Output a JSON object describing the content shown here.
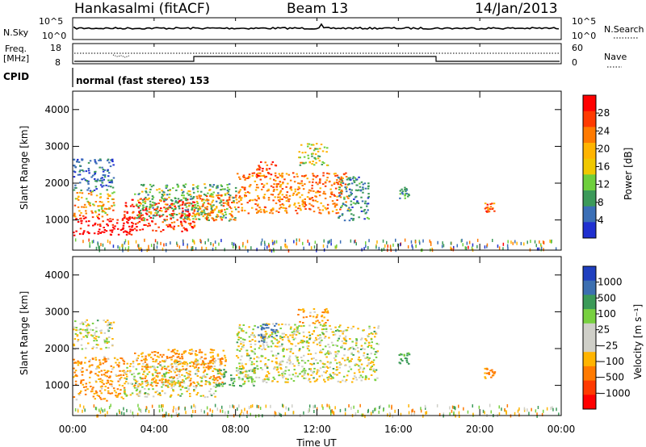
{
  "header": {
    "radar": "Hankasalmi (fitACF)",
    "beam": "Beam 13",
    "date": "14/Jan/2013"
  },
  "noise_panel": {
    "left_label": "N.Sky",
    "left_ticks": [
      "10^5",
      "10^0"
    ],
    "right_label": "N.Search",
    "right_ticks": [
      "10^5",
      "10^0"
    ]
  },
  "freq_panel": {
    "left_label_1": "Freq.",
    "left_label_2": "[MHz]",
    "left_ticks": [
      "18",
      "8"
    ],
    "right_label": "Nave",
    "right_ticks": [
      "60",
      "0"
    ]
  },
  "cpid": {
    "label": "CPID",
    "value": "normal (fast stereo) 153"
  },
  "axes": {
    "ylabel": "Slant Range [km]",
    "yticks": [
      "4000",
      "3000",
      "2000",
      "1000"
    ],
    "xticks": [
      "00:00",
      "04:00",
      "08:00",
      "12:00",
      "16:00",
      "20:00",
      "00:00"
    ],
    "xlabel": "Time UT"
  },
  "power_colorbar": {
    "label": "Power [dB]",
    "ticks": [
      "28",
      "24",
      "20",
      "16",
      "12",
      "8",
      "4"
    ],
    "colors": [
      "#ff0000",
      "#ff3a00",
      "#ff7a00",
      "#ffb400",
      "#f0c800",
      "#6ecf3c",
      "#3c9a5a",
      "#3b6fb6",
      "#2030d0"
    ]
  },
  "velocity_colorbar": {
    "label": "Velocity [m s⁻¹]",
    "ticks": [
      "1000",
      "500",
      "100",
      "25",
      "−25",
      "−100",
      "−500",
      "−1000"
    ],
    "colors": [
      "#1f3fbf",
      "#3c6fb0",
      "#3b9a58",
      "#78d040",
      "#cfcfc8",
      "#cfcfc8",
      "#ffb400",
      "#ff7a00",
      "#ff3a00",
      "#ff0000"
    ]
  },
  "chart_data": [
    {
      "type": "heatmap",
      "title": "Power",
      "xlabel": "Time UT",
      "ylabel": "Slant Range [km]",
      "xlim": [
        "00:00",
        "24:00"
      ],
      "ylim": [
        180,
        4500
      ],
      "colorbar": {
        "label": "Power [dB]",
        "range": [
          3,
          30
        ]
      },
      "regions": [
        {
          "t": [
            0.0,
            3.0
          ],
          "range": [
            600,
            1100
          ],
          "power_db": 30
        },
        {
          "t": [
            0.0,
            2.0
          ],
          "range": [
            1100,
            1800
          ],
          "power_db": 20
        },
        {
          "t": [
            0.0,
            2.0
          ],
          "range": [
            1800,
            2700
          ],
          "power_db": 8
        },
        {
          "t": [
            2.5,
            6.0
          ],
          "range": [
            700,
            1600
          ],
          "power_db": 27
        },
        {
          "t": [
            3.0,
            8.0
          ],
          "range": [
            1000,
            2000
          ],
          "power_db": 14
        },
        {
          "t": [
            6.0,
            8.0
          ],
          "range": [
            1000,
            1700
          ],
          "power_db": 22
        },
        {
          "t": [
            8.0,
            13.5
          ],
          "range": [
            1200,
            2300
          ],
          "power_db": 22
        },
        {
          "t": [
            9.0,
            10.0
          ],
          "range": [
            2200,
            2600
          ],
          "power_db": 26
        },
        {
          "t": [
            11.0,
            12.5
          ],
          "range": [
            2500,
            3100
          ],
          "power_db": 16
        },
        {
          "t": [
            13.0,
            14.5
          ],
          "range": [
            1000,
            2200
          ],
          "power_db": 10
        },
        {
          "t": [
            16.0,
            16.5
          ],
          "range": [
            1600,
            1900
          ],
          "power_db": 12
        },
        {
          "t": [
            20.2,
            20.7
          ],
          "range": [
            1200,
            1500
          ],
          "power_db": 24
        }
      ]
    },
    {
      "type": "heatmap",
      "title": "Velocity",
      "xlabel": "Time UT",
      "ylabel": "Slant Range [km]",
      "xlim": [
        "00:00",
        "24:00"
      ],
      "ylim": [
        180,
        4500
      ],
      "colorbar": {
        "label": "Velocity [m s⁻¹]",
        "range": [
          -1000,
          1000
        ]
      },
      "regions": [
        {
          "t": [
            0.0,
            2.0
          ],
          "range": [
            2000,
            2800
          ],
          "velocity": 0
        },
        {
          "t": [
            0.0,
            2.5
          ],
          "range": [
            600,
            1800
          ],
          "velocity": -100
        },
        {
          "t": [
            2.5,
            7.0
          ],
          "range": [
            700,
            1700
          ],
          "velocity": 0
        },
        {
          "t": [
            3.0,
            7.5
          ],
          "range": [
            1000,
            2000
          ],
          "velocity": -100
        },
        {
          "t": [
            7.0,
            9.0
          ],
          "range": [
            1000,
            1500
          ],
          "velocity": 100
        },
        {
          "t": [
            8.0,
            15.0
          ],
          "range": [
            1100,
            2700
          ],
          "velocity": 0
        },
        {
          "t": [
            11.0,
            12.5
          ],
          "range": [
            2700,
            3100
          ],
          "velocity": -100
        },
        {
          "t": [
            9.0,
            10.0
          ],
          "range": [
            2200,
            2700
          ],
          "velocity": 500
        },
        {
          "t": [
            16.0,
            16.5
          ],
          "range": [
            1600,
            1900
          ],
          "velocity": 100
        },
        {
          "t": [
            20.2,
            20.7
          ],
          "range": [
            1200,
            1500
          ],
          "velocity": -100
        }
      ]
    }
  ]
}
